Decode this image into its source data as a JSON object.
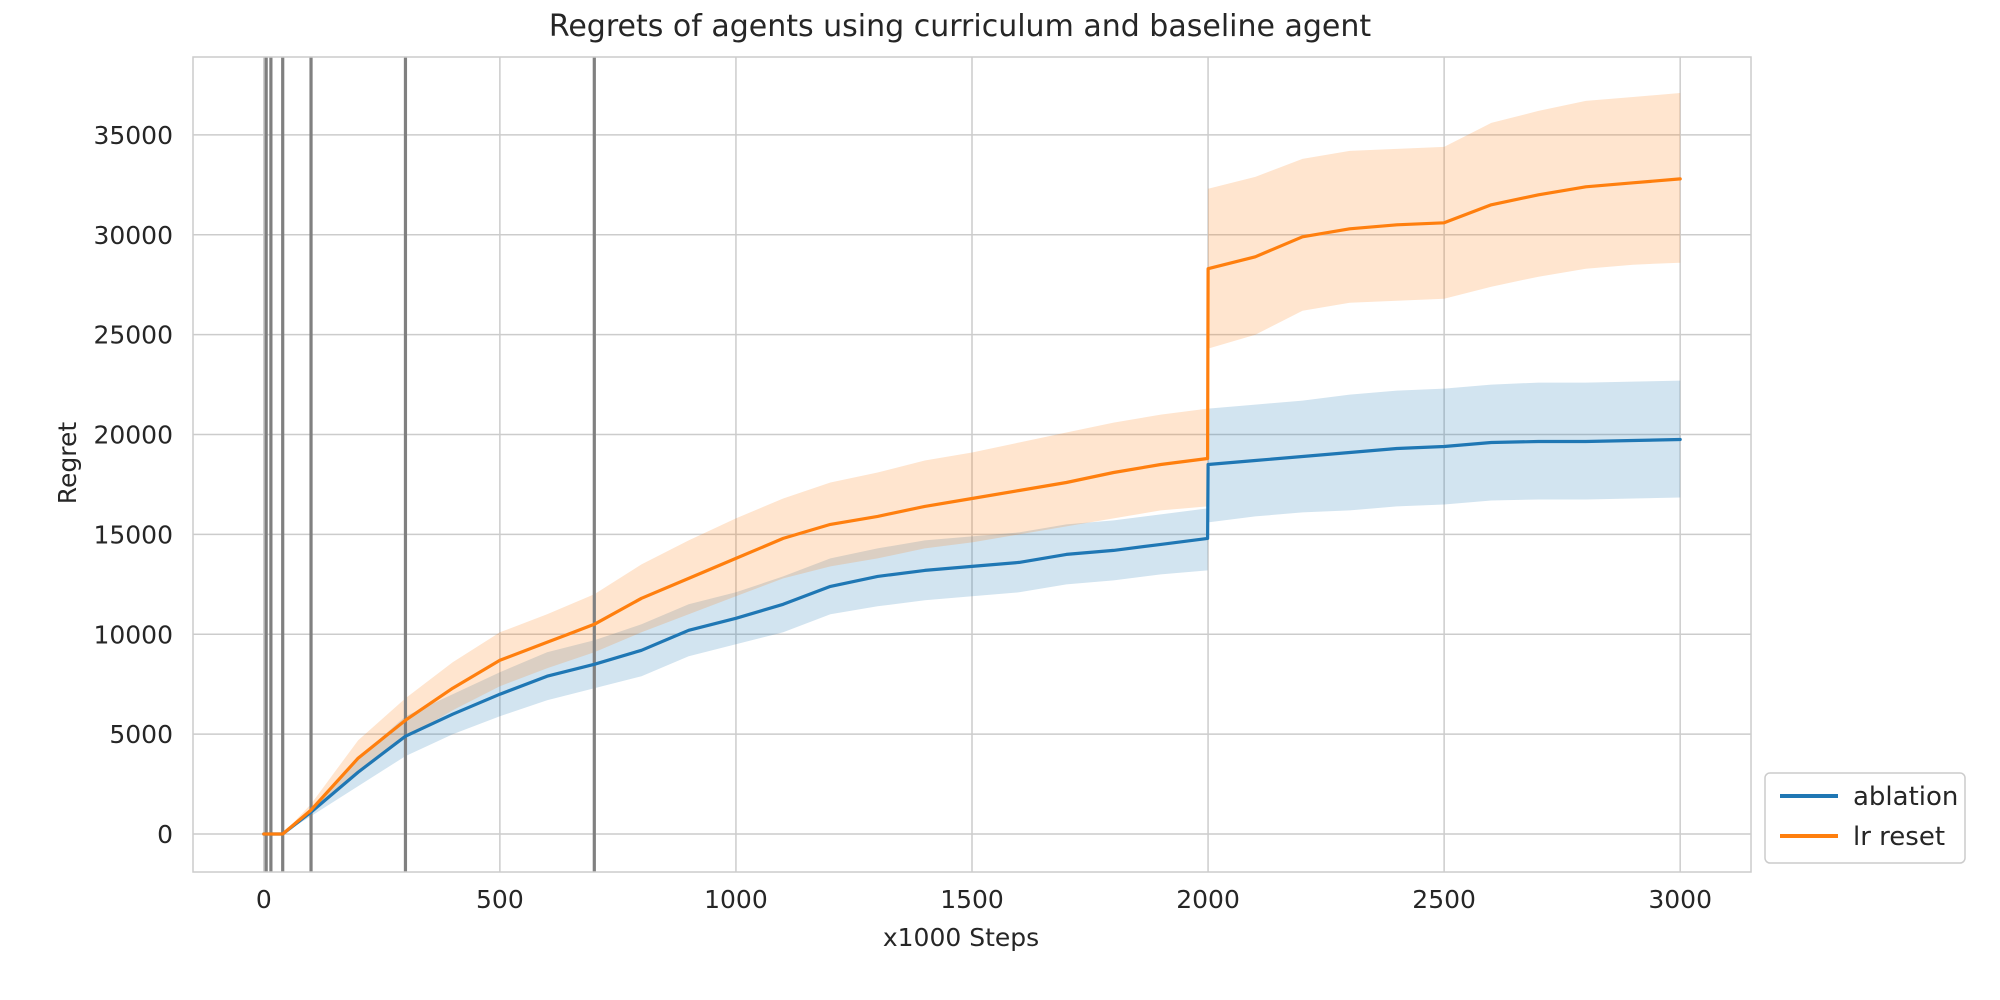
{
  "chart_data": {
    "type": "line",
    "title": "Regrets of agents using curriculum and baseline agent",
    "xlabel": "x1000 Steps",
    "ylabel": "Regret",
    "xlim": [
      -150,
      3150
    ],
    "ylim": [
      -1900,
      38900
    ],
    "xticks": [
      0,
      500,
      1000,
      1500,
      2000,
      2500,
      3000
    ],
    "yticks": [
      0,
      5000,
      10000,
      15000,
      20000,
      25000,
      30000,
      35000
    ],
    "grid": true,
    "legend_position": "outside-bottom-right",
    "vlines": [
      5,
      15,
      40,
      100,
      300,
      700
    ],
    "vline_color": "#808080",
    "series": [
      {
        "name": "ablation",
        "color": "#1f77b4",
        "x": [
          0,
          40,
          100,
          200,
          300,
          400,
          500,
          600,
          700,
          800,
          900,
          1000,
          1100,
          1200,
          1300,
          1400,
          1500,
          1600,
          1700,
          1800,
          1900,
          1999,
          2000,
          2100,
          2200,
          2300,
          2400,
          2500,
          2600,
          2700,
          2800,
          2900,
          3000
        ],
        "y": [
          0,
          0,
          1100,
          3100,
          4900,
          6000,
          7000,
          7900,
          8500,
          9200,
          10200,
          10800,
          11500,
          12400,
          12900,
          13200,
          13400,
          13600,
          14000,
          14200,
          14500,
          14800,
          18500,
          18700,
          18900,
          19100,
          19300,
          19400,
          19600,
          19650,
          19650,
          19700,
          19750
        ],
        "lower": [
          0,
          0,
          900,
          2400,
          3900,
          5000,
          5900,
          6700,
          7300,
          7900,
          8900,
          9500,
          10100,
          11000,
          11400,
          11700,
          11900,
          12100,
          12500,
          12700,
          13000,
          13200,
          15600,
          15900,
          16100,
          16200,
          16400,
          16500,
          16700,
          16750,
          16750,
          16800,
          16850
        ],
        "upper": [
          0,
          0,
          1300,
          3800,
          5900,
          7000,
          8100,
          9100,
          9700,
          10500,
          11500,
          12100,
          12900,
          13800,
          14300,
          14700,
          14900,
          15100,
          15500,
          15700,
          16000,
          16300,
          21300,
          21500,
          21700,
          22000,
          22200,
          22300,
          22500,
          22600,
          22600,
          22650,
          22700
        ]
      },
      {
        "name": "lr reset",
        "color": "#ff7f0e",
        "x": [
          0,
          40,
          100,
          200,
          300,
          400,
          500,
          600,
          700,
          800,
          900,
          1000,
          1100,
          1200,
          1300,
          1400,
          1500,
          1600,
          1700,
          1800,
          1900,
          1999,
          2000,
          2100,
          2200,
          2300,
          2400,
          2500,
          2600,
          2700,
          2800,
          2900,
          3000
        ],
        "y": [
          0,
          0,
          1200,
          3800,
          5700,
          7300,
          8700,
          9600,
          10500,
          11800,
          12800,
          13800,
          14800,
          15500,
          15900,
          16400,
          16800,
          17200,
          17600,
          18100,
          18500,
          18800,
          28300,
          28900,
          29900,
          30300,
          30500,
          30600,
          31500,
          32000,
          32400,
          32600,
          32800
        ],
        "lower": [
          0,
          0,
          1000,
          3000,
          4800,
          6200,
          7400,
          8300,
          9100,
          10100,
          11000,
          11900,
          12800,
          13400,
          13800,
          14300,
          14600,
          15000,
          15400,
          15800,
          16200,
          16400,
          24300,
          25000,
          26200,
          26600,
          26700,
          26800,
          27400,
          27900,
          28300,
          28500,
          28600
        ],
        "upper": [
          0,
          0,
          1500,
          4700,
          6800,
          8600,
          10100,
          11000,
          12000,
          13500,
          14700,
          15800,
          16800,
          17600,
          18100,
          18700,
          19100,
          19600,
          20100,
          20600,
          21000,
          21300,
          32300,
          32900,
          33800,
          34200,
          34300,
          34400,
          35600,
          36200,
          36700,
          36900,
          37100
        ]
      }
    ]
  }
}
